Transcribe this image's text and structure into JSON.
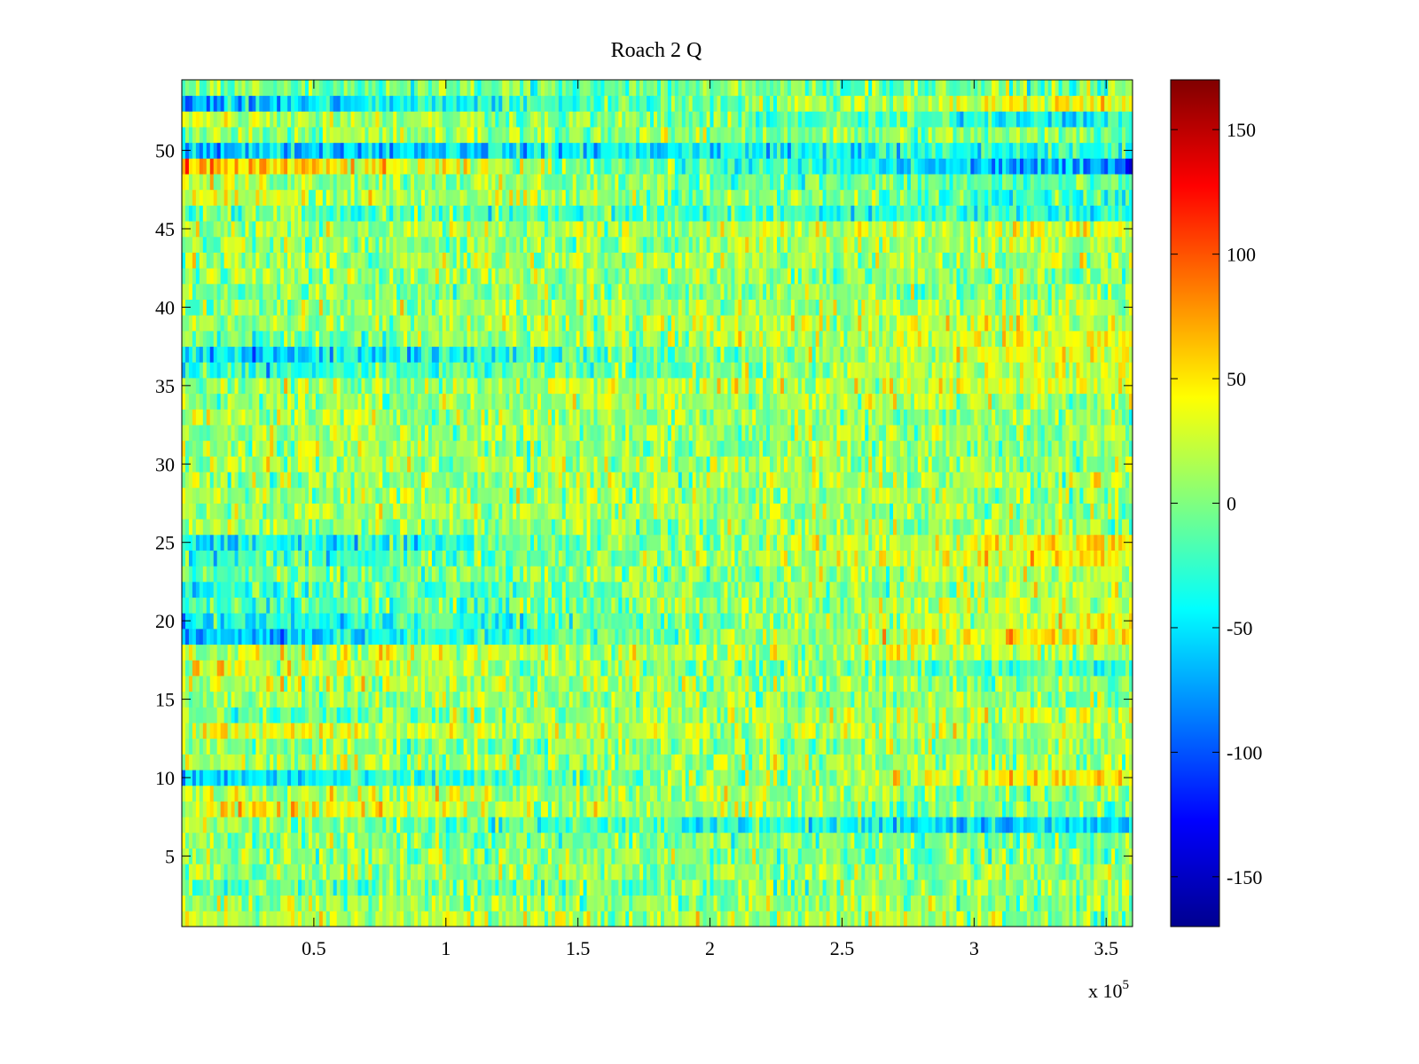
{
  "chart_data": {
    "type": "heatmap",
    "title": "Roach 2 Q",
    "xlabel": "",
    "ylabel": "",
    "x_exponent_label": "x 10",
    "x_exponent": "5",
    "xlim": [
      0,
      360000
    ],
    "ylim": [
      0.5,
      54.5
    ],
    "x_ticks": [
      0.5,
      1,
      1.5,
      2,
      2.5,
      3,
      3.5
    ],
    "x_tick_labels": [
      "0.5",
      "1",
      "1.5",
      "2",
      "2.5",
      "3",
      "3.5"
    ],
    "y_ticks": [
      5,
      10,
      15,
      20,
      25,
      30,
      35,
      40,
      45,
      50
    ],
    "y_tick_labels": [
      "5",
      "10",
      "15",
      "20",
      "25",
      "30",
      "35",
      "40",
      "45",
      "50"
    ],
    "colorbar": {
      "colormap": "jet",
      "range": [
        -170,
        170
      ],
      "ticks": [
        150,
        100,
        50,
        0,
        -50,
        -100,
        -150
      ],
      "tick_labels": [
        "150",
        "100",
        "50",
        "0",
        "-50",
        "-100",
        "-150"
      ]
    },
    "rows": 54,
    "row_trend_mean_start_end": {
      "1": [
        20,
        8
      ],
      "2": [
        10,
        5
      ],
      "3": [
        -10,
        5
      ],
      "4": [
        0,
        10
      ],
      "5": [
        5,
        0
      ],
      "6": [
        5,
        -5
      ],
      "7": [
        10,
        -60
      ],
      "8": [
        40,
        -10
      ],
      "9": [
        30,
        0
      ],
      "10": [
        -60,
        50
      ],
      "11": [
        15,
        10
      ],
      "12": [
        0,
        5
      ],
      "13": [
        35,
        10
      ],
      "14": [
        -10,
        30
      ],
      "15": [
        10,
        5
      ],
      "16": [
        20,
        0
      ],
      "17": [
        30,
        -20
      ],
      "18": [
        20,
        20
      ],
      "19": [
        -70,
        60
      ],
      "20": [
        -50,
        40
      ],
      "21": [
        -20,
        25
      ],
      "22": [
        -20,
        20
      ],
      "23": [
        -15,
        20
      ],
      "24": [
        -30,
        45
      ],
      "25": [
        -50,
        50
      ],
      "26": [
        10,
        5
      ],
      "27": [
        15,
        10
      ],
      "28": [
        10,
        10
      ],
      "29": [
        5,
        15
      ],
      "30": [
        15,
        10
      ],
      "31": [
        10,
        5
      ],
      "32": [
        10,
        10
      ],
      "33": [
        15,
        5
      ],
      "34": [
        5,
        20
      ],
      "35": [
        10,
        30
      ],
      "36": [
        -40,
        30
      ],
      "37": [
        -60,
        40
      ],
      "38": [
        -10,
        35
      ],
      "39": [
        10,
        25
      ],
      "40": [
        5,
        20
      ],
      "41": [
        0,
        5
      ],
      "42": [
        10,
        0
      ],
      "43": [
        10,
        15
      ],
      "44": [
        0,
        20
      ],
      "45": [
        5,
        30
      ],
      "46": [
        -5,
        -30
      ],
      "47": [
        30,
        -20
      ],
      "48": [
        20,
        -20
      ],
      "49": [
        70,
        -90
      ],
      "50": [
        -60,
        -30
      ],
      "51": [
        10,
        0
      ],
      "52": [
        30,
        -40
      ],
      "53": [
        -70,
        50
      ],
      "54": [
        -5,
        -5
      ]
    }
  }
}
